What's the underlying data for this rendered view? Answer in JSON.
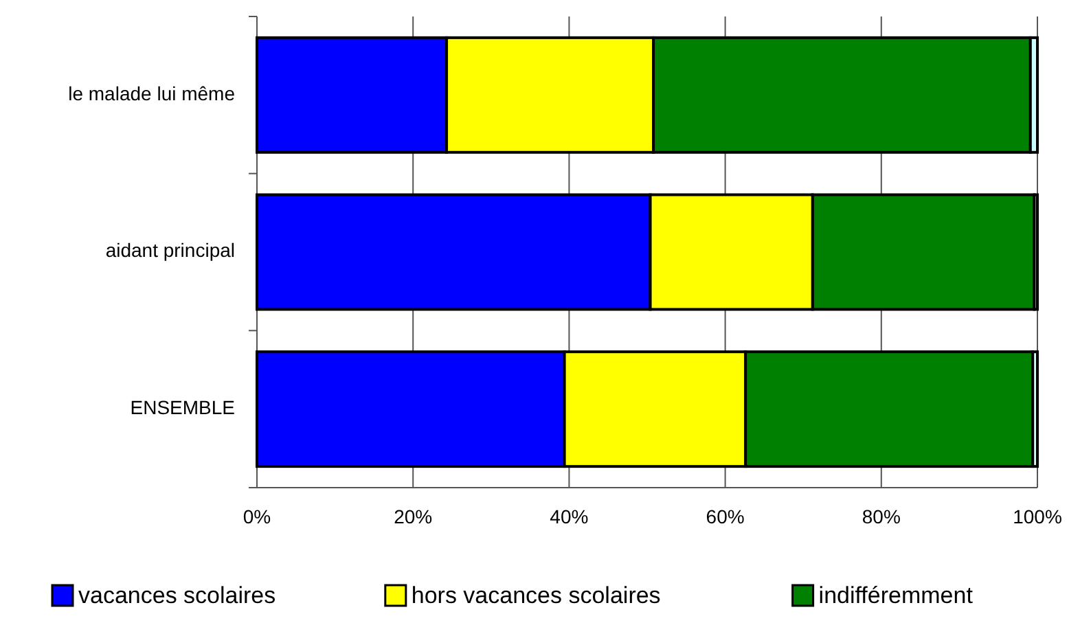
{
  "chart_data": {
    "type": "bar",
    "orientation": "horizontal",
    "stacked": true,
    "categories": [
      "le malade lui même",
      "aidant principal",
      "ENSEMBLE"
    ],
    "series": [
      {
        "name": "vacances scolaires",
        "color": "#0000ff",
        "values": [
          24.3,
          50.4,
          39.4
        ]
      },
      {
        "name": "hors vacances scolaires",
        "color": "#ffff00",
        "values": [
          26.5,
          20.8,
          23.2
        ]
      },
      {
        "name": "indifféremment",
        "color": "#008000",
        "values": [
          48.3,
          28.4,
          36.8
        ]
      },
      {
        "color": "#ccffff",
        "values": [
          0.9,
          0.4,
          0.6
        ]
      }
    ],
    "xlim": [
      0,
      100
    ],
    "xticks": [
      {
        "value": 0,
        "label": "0%"
      },
      {
        "value": 20,
        "label": "20%"
      },
      {
        "value": 40,
        "label": "40%"
      },
      {
        "value": 60,
        "label": "60%"
      },
      {
        "value": 80,
        "label": "80%"
      },
      {
        "value": 100,
        "label": "100%"
      }
    ],
    "grid": "x",
    "legend": "bottom"
  }
}
